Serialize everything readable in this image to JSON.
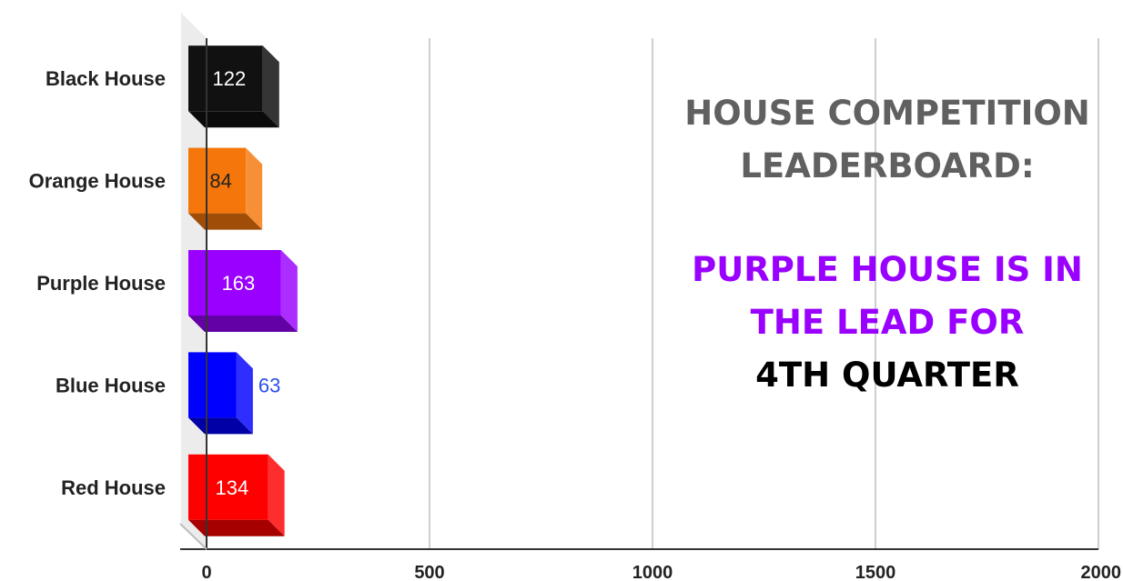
{
  "chart_data": {
    "type": "bar",
    "orientation": "horizontal",
    "style": "3d",
    "categories": [
      "Black House",
      "Orange House",
      "Purple House",
      "Blue House",
      "Red House"
    ],
    "values": [
      122,
      84,
      163,
      63,
      134
    ],
    "colors": [
      "#111111",
      "#f5760a",
      "#9900ff",
      "#0000ff",
      "#ff0000"
    ],
    "data_label_colors": [
      "#ffffff",
      "#222222",
      "#ffffff",
      "#2b4ee6",
      "#ffffff"
    ],
    "xlim": [
      0,
      2000
    ],
    "xticks": [
      0,
      500,
      1000,
      1500,
      2000
    ],
    "grid": true,
    "title": "",
    "xlabel": "",
    "ylabel": ""
  },
  "annotation": {
    "line1": "House Competition",
    "line2": "Leaderboard:",
    "line3": "Purple House is in",
    "line4": "the lead for",
    "line5": "4th Quarter",
    "colors": {
      "gray": "#606060",
      "purple": "#9900ff",
      "black": "#000000"
    }
  }
}
